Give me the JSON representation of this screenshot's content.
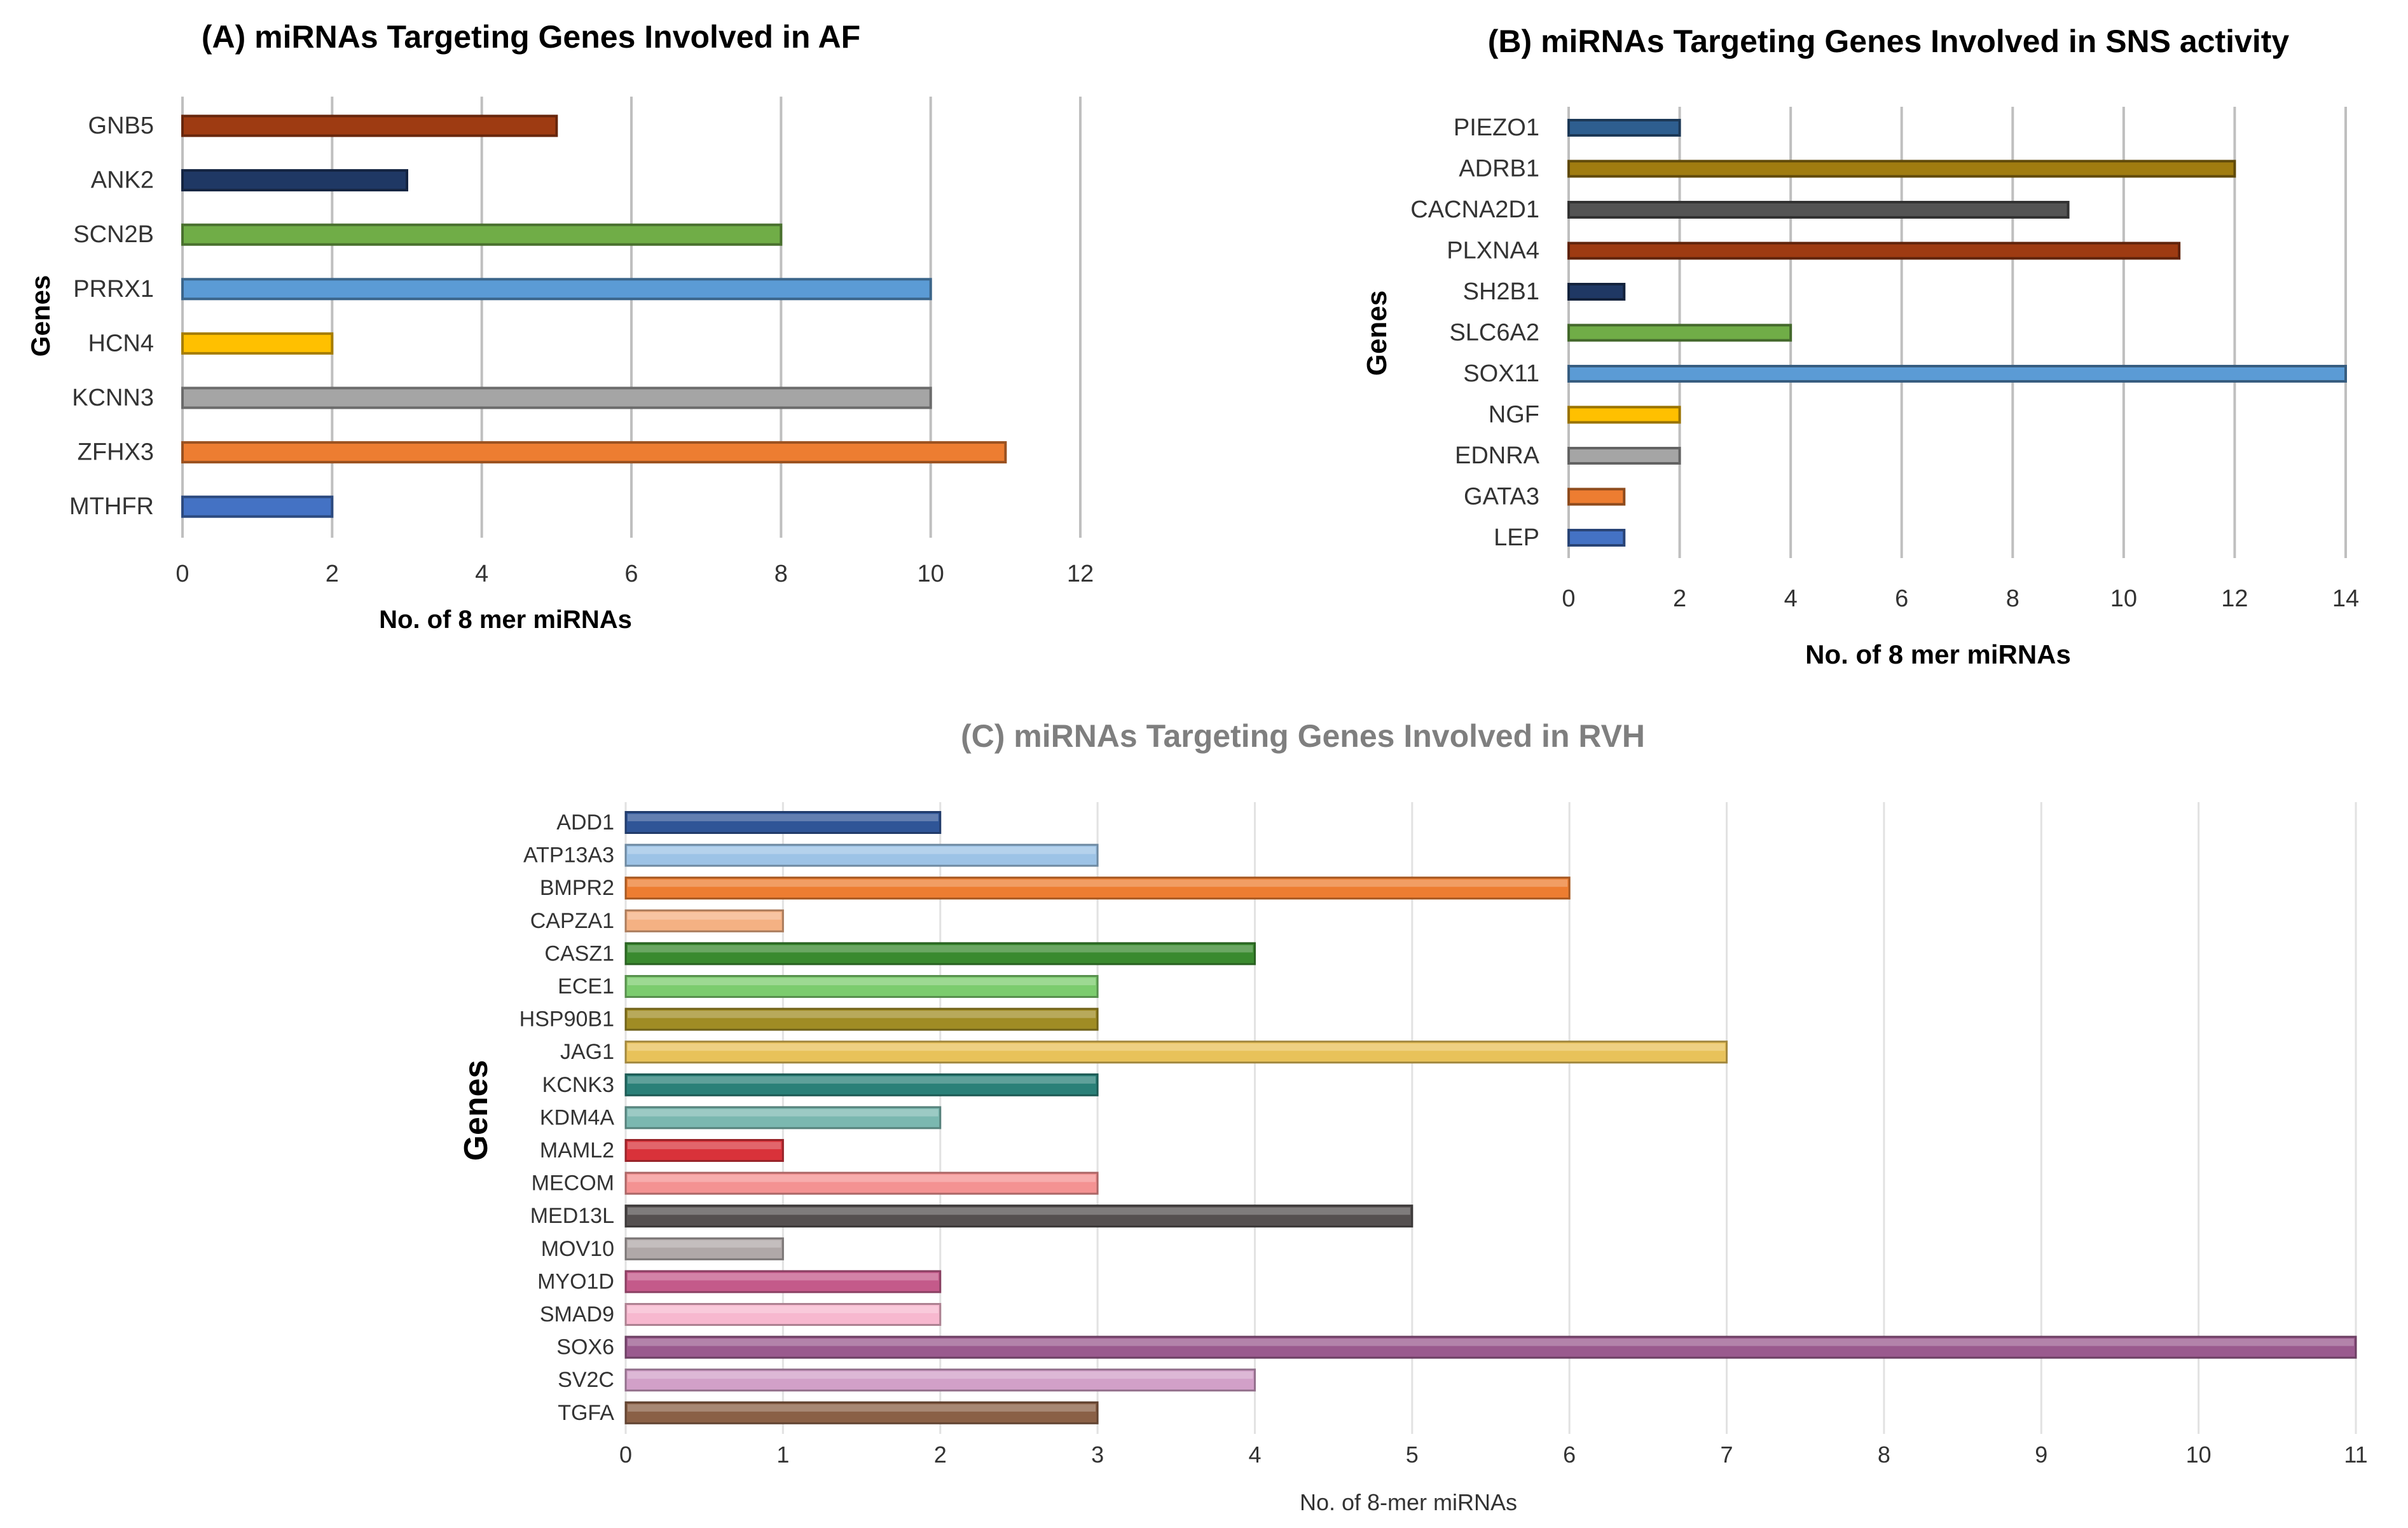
{
  "chart_data": [
    {
      "id": "A",
      "type": "bar",
      "orientation": "horizontal",
      "title": "(A) miRNAs Targeting Genes Involved in AF",
      "xlabel": "No. of 8 mer miRNAs",
      "ylabel": "Genes",
      "xlim": [
        0,
        12
      ],
      "xticks": [
        0,
        2,
        4,
        6,
        8,
        10,
        12
      ],
      "grid": true,
      "categories": [
        "GNB5",
        "ANK2",
        "SCN2B",
        "PRRX1",
        "HCN4",
        "KCNN3",
        "ZFHX3",
        "MTHFR"
      ],
      "values": [
        5,
        3,
        8,
        10,
        2,
        10,
        11,
        2
      ],
      "colors": [
        "#9e3b12",
        "#1f3864",
        "#70ad47",
        "#5b9bd5",
        "#ffc000",
        "#a5a5a5",
        "#ed7d31",
        "#4472c4"
      ]
    },
    {
      "id": "B",
      "type": "bar",
      "orientation": "horizontal",
      "title": "(B) miRNAs Targeting Genes Involved in SNS activity",
      "xlabel": "No. of 8 mer miRNAs",
      "ylabel": "Genes",
      "xlim": [
        0,
        14
      ],
      "xticks": [
        0,
        2,
        4,
        6,
        8,
        10,
        12,
        14
      ],
      "grid": true,
      "categories": [
        "PIEZO1",
        "ADRB1",
        "CACNA2D1",
        "PLXNA4",
        "SH2B1",
        "SLC6A2",
        "SOX11",
        "NGF",
        "EDNRA",
        "GATA3",
        "LEP"
      ],
      "values": [
        2,
        12,
        9,
        11,
        1,
        4,
        14,
        2,
        2,
        1,
        1
      ],
      "colors": [
        "#2e5e8f",
        "#a07c10",
        "#545454",
        "#9e3b12",
        "#1f3864",
        "#70ad47",
        "#5b9bd5",
        "#ffc000",
        "#a5a5a5",
        "#ed7d31",
        "#4472c4"
      ]
    },
    {
      "id": "C",
      "type": "bar",
      "orientation": "horizontal",
      "title": "(C) miRNAs Targeting Genes Involved in RVH",
      "xlabel": "No. of 8-mer miRNAs",
      "ylabel": "Genes",
      "xlim": [
        0,
        11
      ],
      "xticks": [
        0,
        1,
        2,
        3,
        4,
        5,
        6,
        7,
        8,
        9,
        10,
        11
      ],
      "grid": true,
      "categories": [
        "ADD1",
        "ATP13A3",
        "BMPR2",
        "CAPZA1",
        "CASZ1",
        "ECE1",
        "HSP90B1",
        "JAG1",
        "KCNK3",
        "KDM4A",
        "MAML2",
        "MECOM",
        "MED13L",
        "MOV10",
        "MYO1D",
        "SMAD9",
        "SOX6",
        "SV2C",
        "TGFA"
      ],
      "values": [
        2,
        3,
        6,
        1,
        4,
        3,
        3,
        7,
        3,
        2,
        1,
        3,
        5,
        1,
        2,
        2,
        11,
        4,
        3
      ],
      "colors": [
        "#2f5597",
        "#9dc3e6",
        "#ed7d31",
        "#f4b183",
        "#3a8a2f",
        "#7ccc6e",
        "#a08c24",
        "#e8c25a",
        "#2a8078",
        "#7bb8b0",
        "#d9323a",
        "#f49292",
        "#555050",
        "#b0a8a8",
        "#c45a8a",
        "#f7b8cf",
        "#9a5a8e",
        "#d2a0c8",
        "#8a6046"
      ]
    }
  ]
}
